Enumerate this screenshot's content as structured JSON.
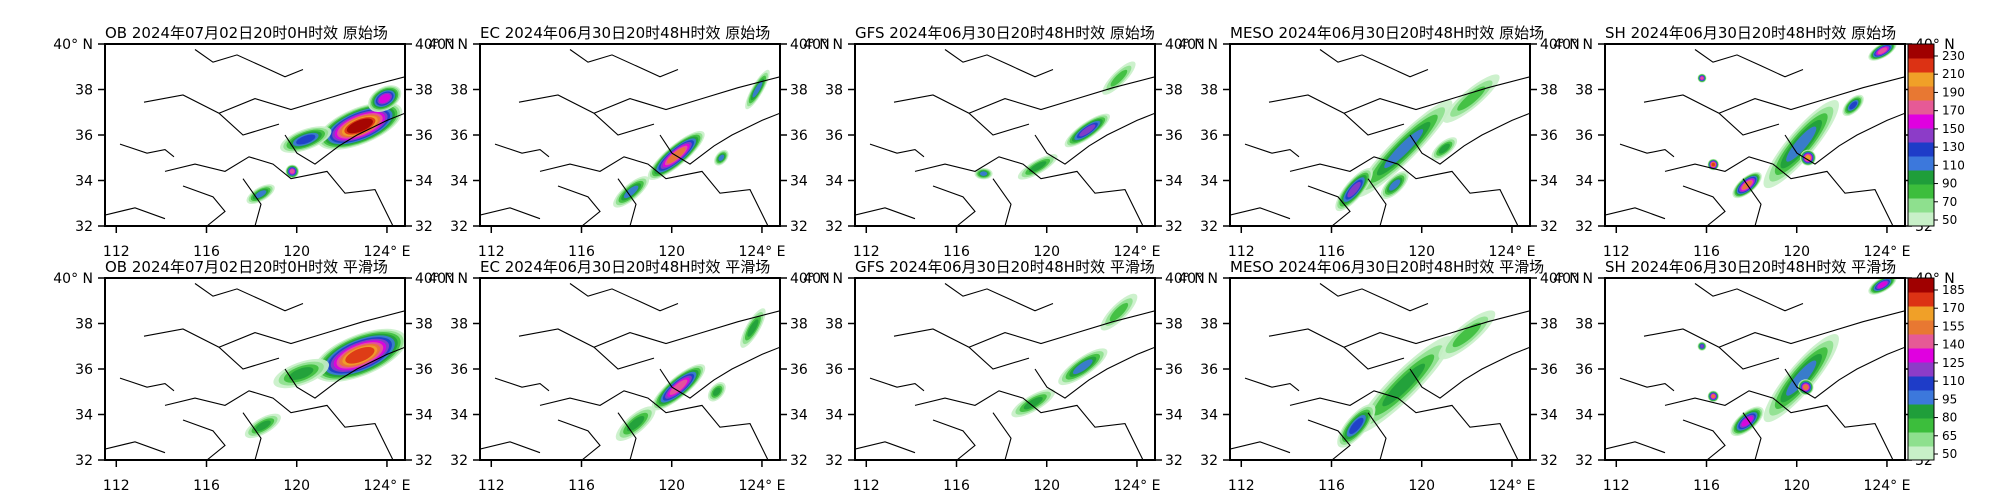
{
  "chart_data": {
    "type": "heatmap",
    "layout": {
      "rows": 2,
      "cols": 5
    },
    "x_ticks": [
      "112",
      "116",
      "120",
      "124° E"
    ],
    "y_ticks": [
      "40° N",
      "38",
      "36",
      "34",
      "32"
    ],
    "x_values": [
      112,
      116,
      120,
      124
    ],
    "y_values": [
      40,
      38,
      36,
      34,
      32
    ],
    "xlim": [
      111.5,
      124.8
    ],
    "ylim": [
      32,
      40
    ],
    "colors": [
      "#c8f0c8",
      "#8ee08e",
      "#3cbe3c",
      "#1f9e3a",
      "#3c78dc",
      "#1e3cc8",
      "#8c3cc8",
      "#e000e0",
      "#e65a96",
      "#e87832",
      "#f0a028",
      "#dc3214",
      "#a00000"
    ],
    "colorbars": [
      {
        "row": 0,
        "labels": [
          "230",
          "210",
          "190",
          "170",
          "150",
          "130",
          "110",
          "90",
          "70",
          "50"
        ]
      },
      {
        "row": 1,
        "labels": [
          "185",
          "170",
          "155",
          "140",
          "125",
          "110",
          "95",
          "80",
          "65",
          "50"
        ]
      }
    ],
    "panels": [
      {
        "title": "OB 2024年07月02日20时0H时效 原始场",
        "row": 0,
        "col": 0,
        "blobs": [
          {
            "lon": 122.8,
            "lat": 36.4,
            "rx": 2.0,
            "ry": 0.8,
            "rot": -22,
            "v": 1.0
          },
          {
            "lon": 123.9,
            "lat": 37.6,
            "rx": 0.8,
            "ry": 0.5,
            "rot": -30,
            "v": 0.6
          },
          {
            "lon": 120.4,
            "lat": 35.8,
            "rx": 1.2,
            "ry": 0.45,
            "rot": -20,
            "v": 0.45
          },
          {
            "lon": 119.8,
            "lat": 34.4,
            "rx": 0.3,
            "ry": 0.3,
            "rot": 0,
            "v": 0.7
          },
          {
            "lon": 118.4,
            "lat": 33.4,
            "rx": 0.7,
            "ry": 0.3,
            "rot": -30,
            "v": 0.35
          }
        ]
      },
      {
        "title": "EC 2024年06月30日20时48H时效 原始场",
        "row": 0,
        "col": 1,
        "blobs": [
          {
            "lon": 120.2,
            "lat": 35.1,
            "rx": 1.6,
            "ry": 0.45,
            "rot": -40,
            "v": 0.8
          },
          {
            "lon": 118.2,
            "lat": 33.5,
            "rx": 1.0,
            "ry": 0.35,
            "rot": -40,
            "v": 0.35
          },
          {
            "lon": 123.8,
            "lat": 38.0,
            "rx": 1.0,
            "ry": 0.25,
            "rot": -60,
            "v": 0.35
          },
          {
            "lon": 122.2,
            "lat": 35.0,
            "rx": 0.4,
            "ry": 0.25,
            "rot": -50,
            "v": 0.35
          }
        ]
      },
      {
        "title": "GFS 2024年06月30日20时48H时效 原始场",
        "row": 0,
        "col": 2,
        "blobs": [
          {
            "lon": 121.8,
            "lat": 36.2,
            "rx": 1.2,
            "ry": 0.35,
            "rot": -35,
            "v": 0.5
          },
          {
            "lon": 119.6,
            "lat": 34.6,
            "rx": 1.0,
            "ry": 0.3,
            "rot": -30,
            "v": 0.3
          },
          {
            "lon": 117.2,
            "lat": 34.3,
            "rx": 0.4,
            "ry": 0.25,
            "rot": 0,
            "v": 0.35
          },
          {
            "lon": 123.2,
            "lat": 38.5,
            "rx": 1.0,
            "ry": 0.3,
            "rot": -45,
            "v": 0.25
          }
        ]
      },
      {
        "title": "MESO 2024年06月30日20时48H时效 原始场",
        "row": 0,
        "col": 3,
        "blobs": [
          {
            "lon": 119.2,
            "lat": 35.4,
            "rx": 3.0,
            "ry": 0.55,
            "rot": -45,
            "v": 0.35
          },
          {
            "lon": 117.0,
            "lat": 33.6,
            "rx": 1.2,
            "ry": 0.4,
            "rot": -50,
            "v": 0.5
          },
          {
            "lon": 118.8,
            "lat": 33.8,
            "rx": 0.8,
            "ry": 0.35,
            "rot": -45,
            "v": 0.4
          },
          {
            "lon": 122.2,
            "lat": 37.6,
            "rx": 1.6,
            "ry": 0.4,
            "rot": -40,
            "v": 0.25
          },
          {
            "lon": 121.0,
            "lat": 35.4,
            "rx": 0.7,
            "ry": 0.3,
            "rot": -40,
            "v": 0.3
          }
        ]
      },
      {
        "title": "SH 2024年06月30日20时48H时效 原始场",
        "row": 0,
        "col": 4,
        "blobs": [
          {
            "lon": 120.2,
            "lat": 35.6,
            "rx": 2.5,
            "ry": 0.6,
            "rot": -50,
            "v": 0.4
          },
          {
            "lon": 120.5,
            "lat": 35.0,
            "rx": 0.35,
            "ry": 0.35,
            "rot": 0,
            "v": 0.85
          },
          {
            "lon": 117.8,
            "lat": 33.8,
            "rx": 0.8,
            "ry": 0.35,
            "rot": -40,
            "v": 0.75
          },
          {
            "lon": 116.3,
            "lat": 34.7,
            "rx": 0.25,
            "ry": 0.25,
            "rot": 0,
            "v": 0.9
          },
          {
            "lon": 115.8,
            "lat": 38.5,
            "rx": 0.2,
            "ry": 0.2,
            "rot": 0,
            "v": 0.7
          },
          {
            "lon": 123.8,
            "lat": 39.7,
            "rx": 0.7,
            "ry": 0.3,
            "rot": -30,
            "v": 0.7
          },
          {
            "lon": 122.5,
            "lat": 37.3,
            "rx": 0.6,
            "ry": 0.3,
            "rot": -45,
            "v": 0.45
          }
        ]
      },
      {
        "title": "OB 2024年07月02日20时0H时效 平滑场",
        "row": 1,
        "col": 0,
        "blobs": [
          {
            "lon": 122.8,
            "lat": 36.6,
            "rx": 2.2,
            "ry": 0.9,
            "rot": -22,
            "v": 0.9
          },
          {
            "lon": 120.2,
            "lat": 35.8,
            "rx": 1.3,
            "ry": 0.5,
            "rot": -20,
            "v": 0.3
          },
          {
            "lon": 118.5,
            "lat": 33.5,
            "rx": 0.9,
            "ry": 0.35,
            "rot": -30,
            "v": 0.3
          }
        ]
      },
      {
        "title": "EC 2024年06月30日20时48H时效 平滑场",
        "row": 1,
        "col": 1,
        "blobs": [
          {
            "lon": 120.3,
            "lat": 35.2,
            "rx": 1.5,
            "ry": 0.45,
            "rot": -40,
            "v": 0.7
          },
          {
            "lon": 118.4,
            "lat": 33.6,
            "rx": 1.1,
            "ry": 0.4,
            "rot": -40,
            "v": 0.3
          },
          {
            "lon": 123.6,
            "lat": 37.8,
            "rx": 1.0,
            "ry": 0.3,
            "rot": -60,
            "v": 0.3
          },
          {
            "lon": 122.0,
            "lat": 35.0,
            "rx": 0.5,
            "ry": 0.3,
            "rot": -50,
            "v": 0.3
          }
        ]
      },
      {
        "title": "GFS 2024年06月30日20时48H时效 平滑场",
        "row": 1,
        "col": 2,
        "blobs": [
          {
            "lon": 121.6,
            "lat": 36.1,
            "rx": 1.3,
            "ry": 0.4,
            "rot": -35,
            "v": 0.4
          },
          {
            "lon": 119.4,
            "lat": 34.5,
            "rx": 1.1,
            "ry": 0.35,
            "rot": -30,
            "v": 0.3
          },
          {
            "lon": 123.2,
            "lat": 38.5,
            "rx": 1.1,
            "ry": 0.35,
            "rot": -45,
            "v": 0.25
          }
        ]
      },
      {
        "title": "MESO 2024年06月30日20时48H时效 平滑场",
        "row": 1,
        "col": 3,
        "blobs": [
          {
            "lon": 119.2,
            "lat": 35.3,
            "rx": 3.0,
            "ry": 0.6,
            "rot": -45,
            "v": 0.3
          },
          {
            "lon": 117.1,
            "lat": 33.5,
            "rx": 1.2,
            "ry": 0.45,
            "rot": -50,
            "v": 0.45
          },
          {
            "lon": 122.0,
            "lat": 37.5,
            "rx": 1.6,
            "ry": 0.45,
            "rot": -40,
            "v": 0.25
          }
        ]
      },
      {
        "title": "SH 2024年06月30日20时48H时效 平滑场",
        "row": 1,
        "col": 4,
        "blobs": [
          {
            "lon": 120.2,
            "lat": 35.6,
            "rx": 2.5,
            "ry": 0.6,
            "rot": -50,
            "v": 0.35
          },
          {
            "lon": 120.4,
            "lat": 35.2,
            "rx": 0.35,
            "ry": 0.35,
            "rot": 0,
            "v": 0.8
          },
          {
            "lon": 117.8,
            "lat": 33.7,
            "rx": 0.9,
            "ry": 0.4,
            "rot": -40,
            "v": 0.6
          },
          {
            "lon": 116.3,
            "lat": 34.8,
            "rx": 0.25,
            "ry": 0.25,
            "rot": 0,
            "v": 0.75
          },
          {
            "lon": 115.8,
            "lat": 37.0,
            "rx": 0.2,
            "ry": 0.2,
            "rot": 0,
            "v": 0.5
          },
          {
            "lon": 123.8,
            "lat": 39.7,
            "rx": 0.7,
            "ry": 0.3,
            "rot": -30,
            "v": 0.6
          }
        ]
      }
    ]
  }
}
